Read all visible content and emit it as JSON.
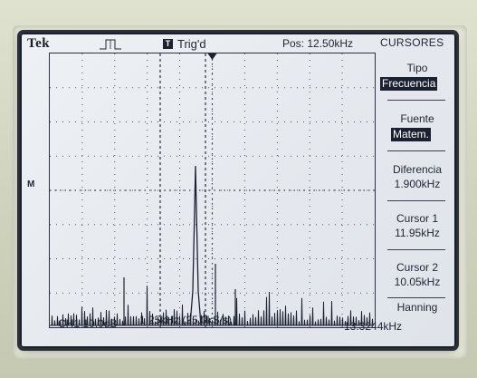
{
  "header": {
    "brand": "Tek",
    "trigger_badge": "T",
    "trigger_status": "Trig'd",
    "position": "Pos: 12.50kHz",
    "menu_title": "CURSORES"
  },
  "side_menu": {
    "tipo_label": "Tipo",
    "tipo_value": "Frecuencia",
    "fuente_label": "Fuente",
    "fuente_value": "Matem.",
    "diferencia_label": "Diferencia",
    "diferencia_value": "1.900kHz",
    "cursor1_label": "Cursor 1",
    "cursor1_value": "11.95kHz",
    "cursor2_label": "Cursor 2",
    "cursor2_value": "10.05kHz",
    "window_label": "Hanning"
  },
  "footer": {
    "channel": "CH1 10.0dB",
    "timebase": "1.25kHz (25.0kS/s)",
    "frequency": "13.3244kHz"
  },
  "markers": {
    "math_marker": "M"
  },
  "colors": {
    "screen_bg": "#e8ecf0",
    "trace": "#1c2130",
    "inverse_bg": "#1c2130"
  },
  "chart_data": {
    "type": "line",
    "title": "",
    "xlabel": "",
    "ylabel": "",
    "xlim": [
      0,
      12.5
    ],
    "grid": true,
    "cursors_khz": [
      10.05,
      11.95
    ],
    "peak_khz": 5.0
  }
}
